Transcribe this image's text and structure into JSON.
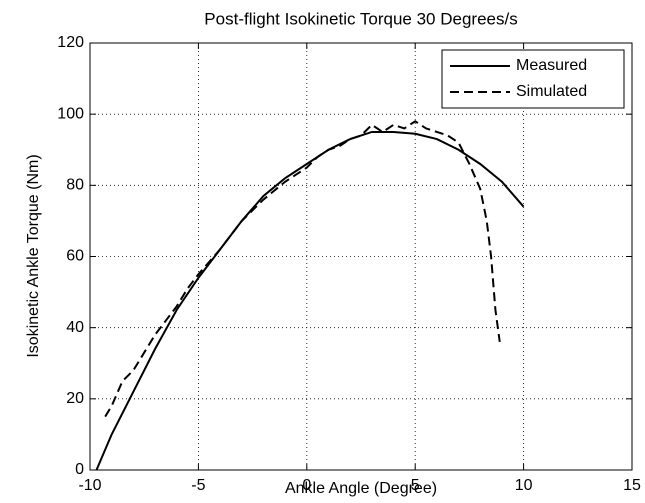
{
  "chart_data": {
    "type": "line",
    "title": "Post-flight Isokinetic Torque 30 Degrees/s",
    "xlabel": "Ankle Angle (Degree)",
    "ylabel": "Isokinetic Ankle Torque (Nm)",
    "series": [
      {
        "name": "Measured",
        "color": "#000000",
        "dash": "solid",
        "x": [
          -9.7,
          -9,
          -8,
          -7,
          -6,
          -5,
          -4,
          -3,
          -2,
          -1,
          0,
          1,
          2,
          3,
          4,
          5,
          6,
          7,
          8,
          9,
          10
        ],
        "values": [
          0,
          10,
          22,
          34,
          45,
          54,
          62,
          70,
          77,
          82,
          86,
          90,
          93,
          95,
          95,
          94.5,
          93,
          90,
          86,
          81,
          74
        ]
      },
      {
        "name": "Simulated",
        "color": "#000000",
        "dash": "dashed",
        "x": [
          -9.3,
          -9,
          -8.5,
          -8,
          -7.5,
          -7,
          -6.5,
          -6,
          -5.5,
          -5,
          -4,
          -3,
          -2,
          -1,
          0,
          0.5,
          1,
          1.5,
          2,
          2.5,
          3,
          3.5,
          4,
          4.5,
          5,
          5.5,
          6,
          6.5,
          7,
          7.5,
          8,
          8.3,
          8.5,
          8.7,
          8.9
        ],
        "values": [
          15,
          18,
          25,
          28,
          33,
          38,
          42,
          46,
          51,
          55,
          62,
          70,
          76,
          81,
          85,
          88,
          90,
          91,
          93,
          94,
          97,
          95,
          97,
          96,
          98,
          96,
          95,
          94,
          92,
          86,
          79,
          70,
          60,
          45,
          36
        ]
      }
    ],
    "xlim": [
      -10,
      15
    ],
    "xticks": [
      -10,
      -5,
      0,
      5,
      10,
      15
    ],
    "ylim": [
      0,
      120
    ],
    "yticks": [
      0,
      20,
      40,
      60,
      80,
      100,
      120
    ],
    "grid": true,
    "legend": "top-right"
  }
}
